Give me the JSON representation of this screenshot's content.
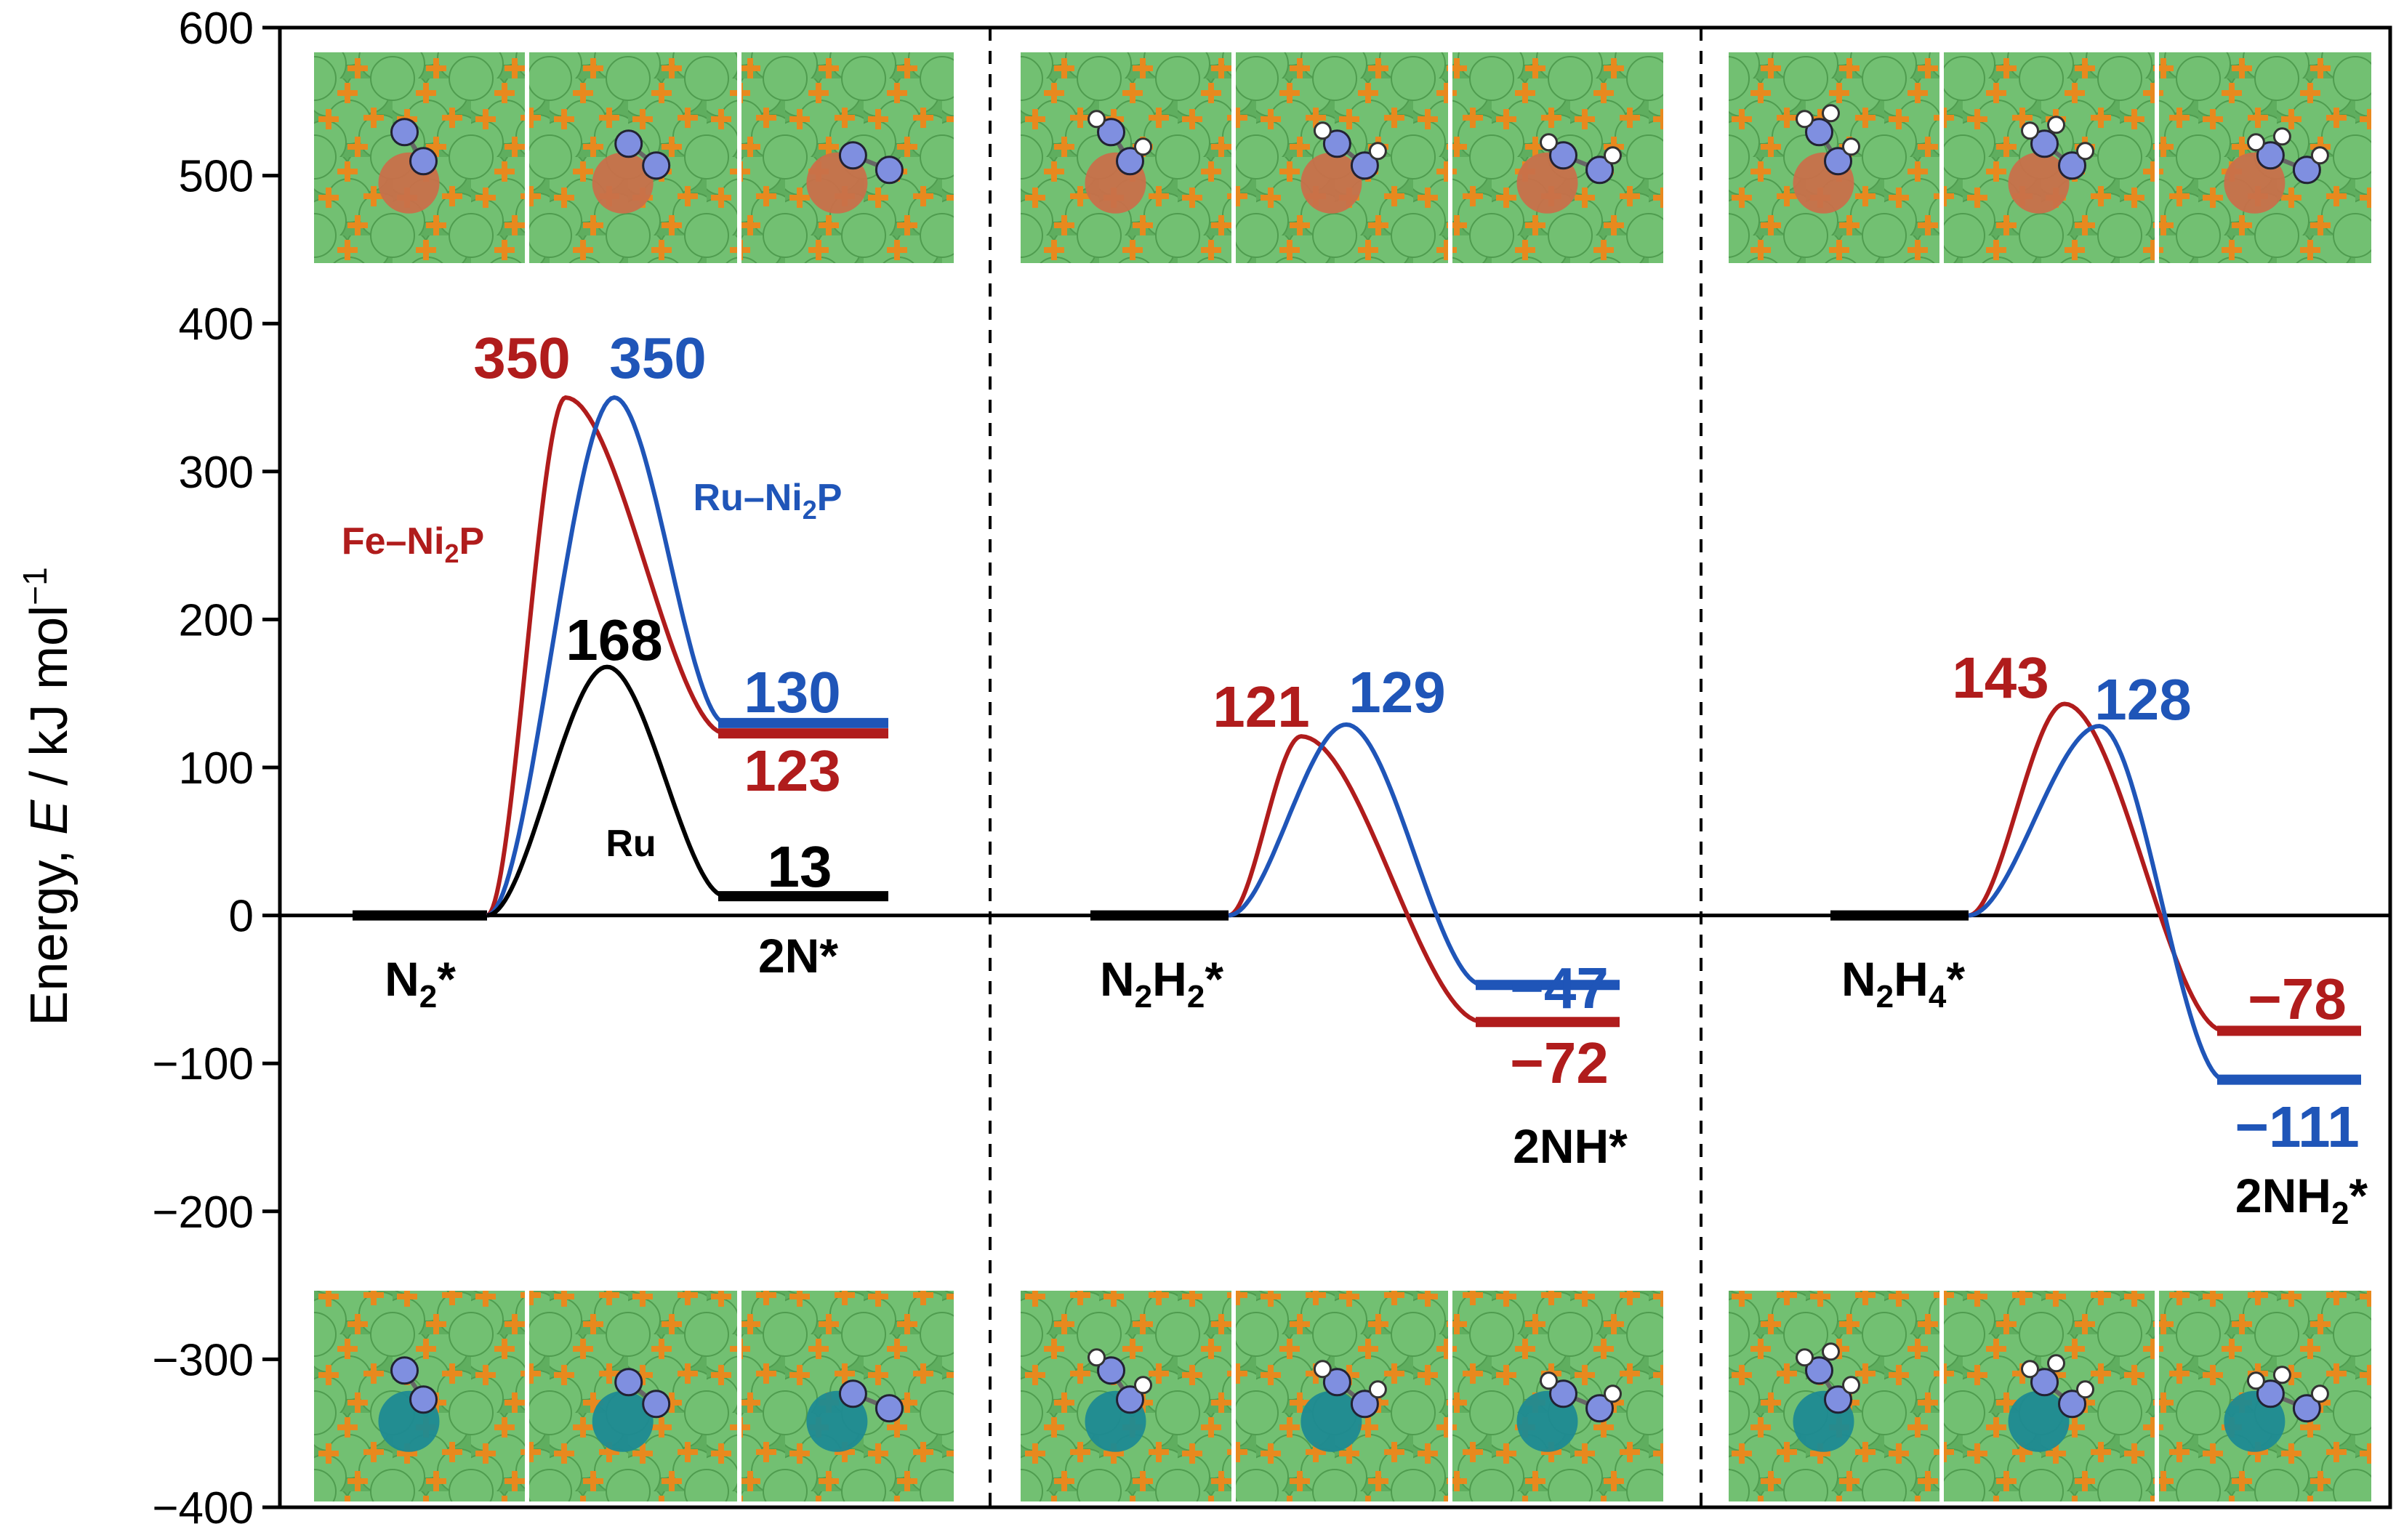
{
  "chart_data": {
    "type": "line",
    "title": "",
    "ylabel": "Energy, E / kJ mol⁻¹",
    "ylabel_parts": {
      "prefix": "Energy, ",
      "var": "E",
      "unit": " / kJ mol",
      "sup": "−1"
    },
    "ylim": [
      -400,
      600
    ],
    "yticks": [
      600,
      500,
      400,
      300,
      200,
      100,
      0,
      -100,
      -200,
      -300,
      -400
    ],
    "ytick_labels": [
      "600",
      "500",
      "400",
      "300",
      "200",
      "100",
      "0",
      "−100",
      "−200",
      "−300",
      "−400"
    ],
    "colors": {
      "Fe-Ni2P": "#b01c1c",
      "Ru-Ni2P": "#1f55b8",
      "Ru": "#000000",
      "mosaic_green": "#72c072",
      "mosaic_orange": "#e8891e",
      "fe_atom": "#c8704a",
      "ru_atom": "#1e8a92",
      "n_atom": "#7f8fe0"
    },
    "legend": [
      {
        "name": "Fe–Ni₂P",
        "base": "Fe–Ni",
        "sub": "2",
        "tail": "P",
        "color": "#b01c1c"
      },
      {
        "name": "Ru–Ni₂P",
        "base": "Ru–Ni",
        "sub": "2",
        "tail": "P",
        "color": "#1f55b8"
      },
      {
        "name": "Ru",
        "base": "Ru",
        "sub": "",
        "tail": "",
        "color": "#000000"
      }
    ],
    "panels": [
      {
        "initial_state": {
          "base": "N",
          "sub1": "2",
          "mid": "",
          "sub2": "",
          "tail": "*"
        },
        "final_state": {
          "base": "2N*",
          "sub1": "",
          "mid": "",
          "sub2": "",
          "tail": ""
        },
        "series": [
          {
            "name": "Fe–Ni₂P",
            "initial": 0,
            "ts": 350,
            "final": 123,
            "ts_label": "350",
            "final_label": "123"
          },
          {
            "name": "Ru–Ni₂P",
            "initial": 0,
            "ts": 350,
            "final": 130,
            "ts_label": "350",
            "final_label": "130"
          },
          {
            "name": "Ru",
            "initial": 0,
            "ts": 168,
            "final": 13,
            "ts_label": "168",
            "final_label": "13"
          }
        ]
      },
      {
        "initial_state": {
          "base": "N",
          "sub1": "2",
          "mid": "H",
          "sub2": "2",
          "tail": "*"
        },
        "final_state": {
          "base": "2NH*",
          "sub1": "",
          "mid": "",
          "sub2": "",
          "tail": ""
        },
        "series": [
          {
            "name": "Fe–Ni₂P",
            "initial": 0,
            "ts": 121,
            "final": -72,
            "ts_label": "121",
            "final_label": "−72"
          },
          {
            "name": "Ru–Ni₂P",
            "initial": 0,
            "ts": 129,
            "final": -47,
            "ts_label": "129",
            "final_label": "−47"
          }
        ]
      },
      {
        "initial_state": {
          "base": "N",
          "sub1": "2",
          "mid": "H",
          "sub2": "4",
          "tail": "*"
        },
        "final_state": {
          "base": "2NH",
          "sub1": "2",
          "mid": "",
          "sub2": "",
          "tail": "*"
        },
        "series": [
          {
            "name": "Fe–Ni₂P",
            "initial": 0,
            "ts": 143,
            "final": -78,
            "ts_label": "143",
            "final_label": "−78"
          },
          {
            "name": "Ru–Ni₂P",
            "initial": 0,
            "ts": 128,
            "final": -111,
            "ts_label": "128",
            "final_label": "−111"
          }
        ]
      }
    ],
    "structure_images": {
      "rows": [
        "Fe–Ni₂P",
        "Ru–Ni₂P"
      ],
      "per_panel": 3,
      "stages": [
        "initial",
        "transition",
        "final"
      ]
    }
  }
}
